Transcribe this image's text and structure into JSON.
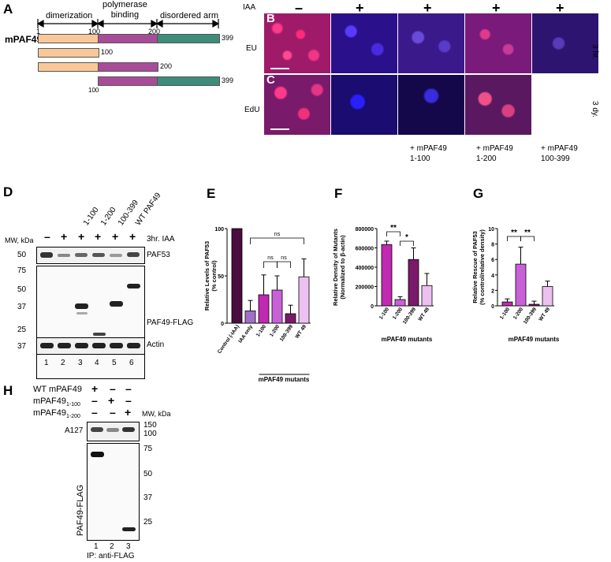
{
  "panels": {
    "A": "A",
    "B": "B",
    "C": "C",
    "D": "D",
    "E": "E",
    "F": "F",
    "G": "G",
    "H": "H"
  },
  "panel_a": {
    "domains": [
      "dimerization",
      "polymerase\nbinding",
      "disordered arm"
    ],
    "construct_name": "mPAF49",
    "ticks": [
      "1",
      "100",
      "200",
      "399"
    ],
    "row_end_labels": [
      "399",
      "100",
      "200",
      "399"
    ],
    "row4_start": "100",
    "colors": {
      "dimerization": "#fac898",
      "polymerase": "#a84c9a",
      "disordered": "#3e8c7a"
    }
  },
  "micro": {
    "iaa_label": "IAA",
    "iaa_signs": [
      "–",
      "+",
      "+",
      "+",
      "+"
    ],
    "row_labels": [
      "EU",
      "EdU"
    ],
    "time_labels": [
      "3 hr.",
      "3 dy."
    ],
    "captions": [
      "+ mPAF49\n1-100",
      "+ mPAF49\n1-200",
      "+ mPAF49\n100-399"
    ]
  },
  "panel_d": {
    "lanes_top": [
      "1-100",
      "1-200",
      "100-399",
      "WT PAF49"
    ],
    "mw_label": "MW, kDa",
    "iaa_row": [
      "–",
      "+",
      "+",
      "+",
      "+",
      "+"
    ],
    "iaa_text": "3hr. IAA",
    "mw_marks_top": [
      "50"
    ],
    "mw_marks_mid": [
      "75",
      "50",
      "37",
      "25"
    ],
    "mw_marks_bot": [
      "37"
    ],
    "blot_labels": [
      "PAF53",
      "PAF49-FLAG",
      "Actin"
    ],
    "lane_numbers": [
      "1",
      "2",
      "3",
      "4",
      "5",
      "6"
    ]
  },
  "chart_data": [
    {
      "type": "bar",
      "panel": "E",
      "categories": [
        "Control (-IAA)",
        "IAA only",
        "1-100",
        "1-200",
        "100-399",
        "WT 49"
      ],
      "values": [
        100,
        13,
        30,
        35,
        10,
        49
      ],
      "errors": [
        0,
        11,
        21,
        15,
        9,
        19
      ],
      "colors": [
        "#4a0d3f",
        "#a070c8",
        "#c02ab0",
        "#c860d8",
        "#7a1a6a",
        "#ecc0f0"
      ],
      "ylabel": "Relative Levels of PAF53\n(% control)",
      "xlabel": "mPAF49 mutants",
      "ylim": [
        0,
        100
      ],
      "yticks": [
        "0",
        "50",
        "100"
      ],
      "significance": [
        "ns",
        "ns",
        "ns"
      ]
    },
    {
      "type": "bar",
      "panel": "F",
      "categories": [
        "1-100",
        "1-200",
        "100-399",
        "WT 49"
      ],
      "values": [
        635000,
        65000,
        480000,
        210000
      ],
      "errors": [
        35000,
        30000,
        120000,
        125000
      ],
      "colors": [
        "#c02ab0",
        "#c860d8",
        "#7a1a6a",
        "#ecc0f0"
      ],
      "ylabel": "Relative Density of Mutants\n(Normalized to β-actin)",
      "xlabel": "mPAF49 mutants",
      "ylim": [
        0,
        800000
      ],
      "yticks": [
        "0",
        "200000",
        "400000",
        "600000",
        "800000"
      ],
      "significance": [
        "**",
        "*"
      ]
    },
    {
      "type": "bar",
      "panel": "G",
      "categories": [
        "1-100",
        "1-200",
        "100-399",
        "WT 49"
      ],
      "values": [
        0.5,
        5.4,
        0.2,
        2.5
      ],
      "errors": [
        0.4,
        2.2,
        0.4,
        0.7
      ],
      "colors": [
        "#c02ab0",
        "#c860d8",
        "#7a1a6a",
        "#ecc0f0"
      ],
      "ylabel": "Relative Rescue of PAF53\n(% control/relative density)",
      "xlabel": "mPAF49 mutants",
      "ylim": [
        0,
        10
      ],
      "yticks": [
        "0",
        "2",
        "4",
        "6",
        "8",
        "10"
      ],
      "significance": [
        "**",
        "**"
      ]
    }
  ],
  "panel_h": {
    "rows": [
      "WT mPAF49",
      "mPAF49",
      "mPAF49"
    ],
    "subs": [
      "",
      "1-100",
      "1-200"
    ],
    "signs": [
      [
        "+",
        "–",
        "–"
      ],
      [
        "–",
        "+",
        "–"
      ],
      [
        "–",
        "–",
        "+"
      ]
    ],
    "mw_label": "MW, kDa",
    "mw_marks_top": [
      "150",
      "100"
    ],
    "mw_marks_bot": [
      "75",
      "50",
      "37",
      "25"
    ],
    "blot_labels": [
      "A127",
      "PAF49-FLAG"
    ],
    "lane_numbers": [
      "1",
      "2",
      "3"
    ],
    "ip_label": "IP: anti-FLAG"
  }
}
